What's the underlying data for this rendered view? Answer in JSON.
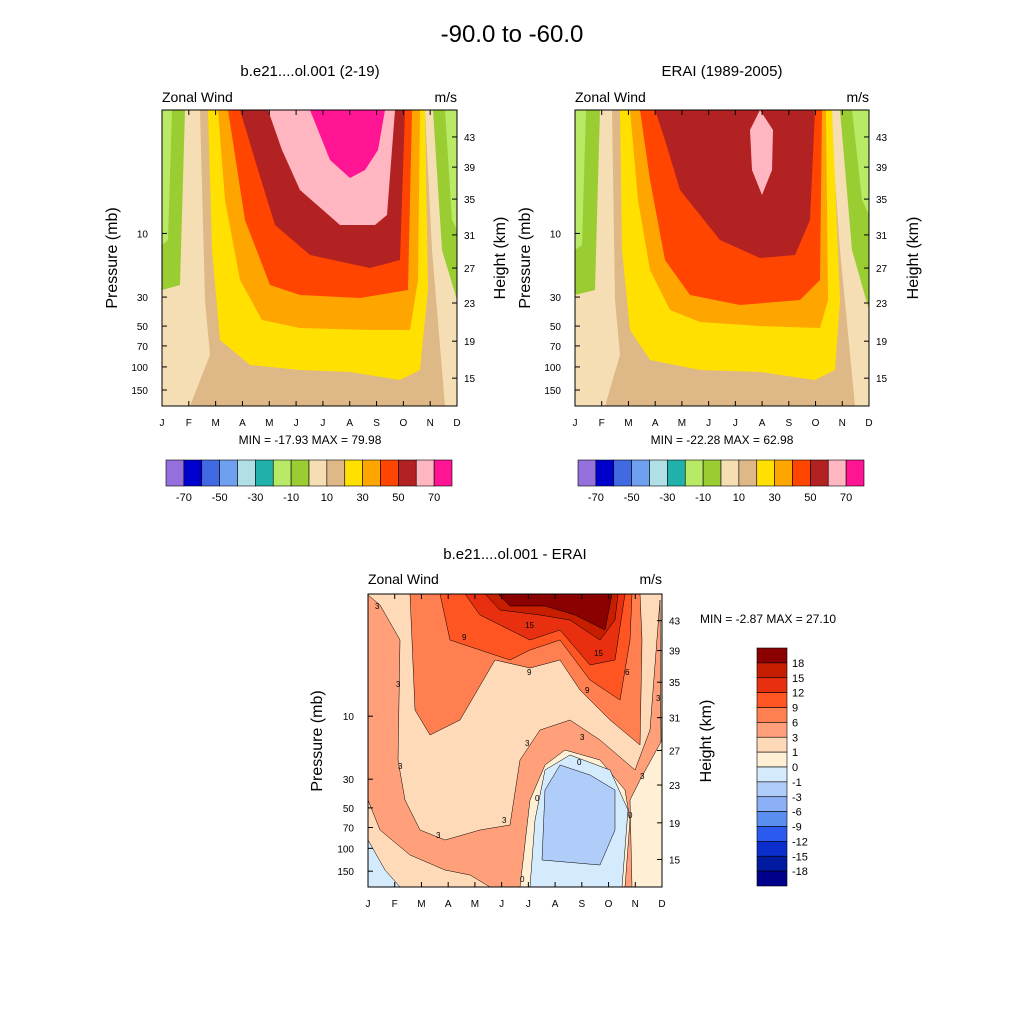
{
  "figure": {
    "title": "-90.0 to -60.0"
  },
  "panels": [
    {
      "title": "b.e21....ol.001 (2-19)",
      "left_label": "Zonal Wind",
      "right_label": "m/s",
      "ylabel": "Pressure (mb)",
      "y2label": "Height (km)",
      "min_max_text": "MIN = -17.93  MAX =  79.98"
    },
    {
      "title": "ERAI (1989-2005)",
      "left_label": "Zonal Wind",
      "right_label": "m/s",
      "ylabel": "Pressure (mb)",
      "y2label": "Height (km)",
      "min_max_text": "MIN = -22.28  MAX =  62.98"
    },
    {
      "title": "b.e21....ol.001 - ERAI",
      "left_label": "Zonal Wind",
      "right_label": "m/s",
      "ylabel": "Pressure (mb)",
      "y2label": "Height (km)",
      "min_max_text": "MIN =  -2.87  MAX =  27.10"
    }
  ],
  "months": [
    "J",
    "F",
    "M",
    "A",
    "M",
    "J",
    "J",
    "A",
    "S",
    "O",
    "N",
    "D"
  ],
  "pressure_ticks": [
    "10",
    "30",
    "50",
    "70",
    "100",
    "150"
  ],
  "height_ticks": [
    "43",
    "39",
    "35",
    "31",
    "27",
    "23",
    "19",
    "15"
  ],
  "colorbar_full": {
    "labels": [
      "-70",
      "-50",
      "-30",
      "-10",
      "10",
      "30",
      "50",
      "70"
    ],
    "colors": [
      "#9370db",
      "#0000cd",
      "#4169e1",
      "#6f9fef",
      "#b0e0e6",
      "#20b2aa",
      "#b8ea66",
      "#9acd32",
      "#f5deb3",
      "#deb887",
      "#ffe000",
      "#ffa500",
      "#ff4500",
      "#b22222",
      "#ffb6c1",
      "#ff1493"
    ]
  },
  "colorbar_diff": {
    "labels": [
      "18",
      "15",
      "12",
      "9",
      "6",
      "3",
      "1",
      "0",
      "-1",
      "-3",
      "-6",
      "-9",
      "-12",
      "-15",
      "-18"
    ],
    "colors": [
      "#8b0000",
      "#c81e00",
      "#e83010",
      "#ff5522",
      "#ff7f50",
      "#ffa07a",
      "#ffdab9",
      "#ffefd5",
      "#d4eafd",
      "#b0ccf8",
      "#8cb0f5",
      "#5a8ff0",
      "#2a5aee",
      "#0a2fcc",
      "#001aa0",
      "#00008b"
    ]
  },
  "chart_data": [
    {
      "type": "heatmap",
      "title": "b.e21....ol.001 (2-19)",
      "xlabel": "",
      "ylabel": "Pressure (mb)",
      "y2label": "Height (km)",
      "x": [
        "J",
        "F",
        "M",
        "A",
        "M",
        "J",
        "J",
        "A",
        "S",
        "O",
        "N",
        "D"
      ],
      "y_pressure_ticks": [
        10,
        30,
        50,
        70,
        100,
        150
      ],
      "y_height_ticks": [
        15,
        19,
        23,
        27,
        31,
        35,
        39,
        43
      ],
      "contour_levels": [
        -70,
        -60,
        -50,
        -40,
        -30,
        -20,
        -10,
        0,
        10,
        20,
        30,
        40,
        50,
        60,
        70
      ],
      "min": -17.93,
      "max": 79.98
    },
    {
      "type": "heatmap",
      "title": "ERAI (1989-2005)",
      "xlabel": "",
      "ylabel": "Pressure (mb)",
      "y2label": "Height (km)",
      "x": [
        "J",
        "F",
        "M",
        "A",
        "M",
        "J",
        "J",
        "A",
        "S",
        "O",
        "N",
        "D"
      ],
      "y_pressure_ticks": [
        10,
        30,
        50,
        70,
        100,
        150
      ],
      "y_height_ticks": [
        15,
        19,
        23,
        27,
        31,
        35,
        39,
        43
      ],
      "contour_levels": [
        -70,
        -60,
        -50,
        -40,
        -30,
        -20,
        -10,
        0,
        10,
        20,
        30,
        40,
        50,
        60,
        70
      ],
      "min": -22.28,
      "max": 62.98
    },
    {
      "type": "heatmap",
      "title": "b.e21....ol.001 - ERAI",
      "xlabel": "",
      "ylabel": "Pressure (mb)",
      "y2label": "Height (km)",
      "x": [
        "J",
        "F",
        "M",
        "A",
        "M",
        "J",
        "J",
        "A",
        "S",
        "O",
        "N",
        "D"
      ],
      "y_pressure_ticks": [
        10,
        30,
        50,
        70,
        100,
        150
      ],
      "y_height_ticks": [
        15,
        19,
        23,
        27,
        31,
        35,
        39,
        43
      ],
      "contour_levels": [
        -18,
        -15,
        -12,
        -9,
        -6,
        -3,
        -1,
        0,
        1,
        3,
        6,
        9,
        12,
        15,
        18
      ],
      "min": -2.87,
      "max": 27.1
    }
  ]
}
